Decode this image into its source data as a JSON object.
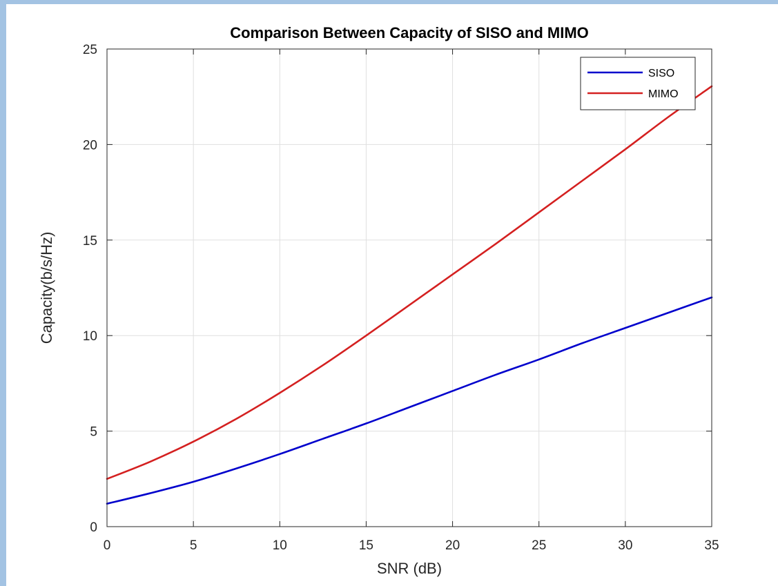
{
  "chart_data": {
    "type": "line",
    "title": "Comparison Between Capacity of SISO and MIMO",
    "xlabel": "SNR (dB)",
    "ylabel": "Capacity(b/s/Hz)",
    "xlim": [
      0,
      35
    ],
    "ylim": [
      0,
      25
    ],
    "xticks": [
      0,
      5,
      10,
      15,
      20,
      25,
      30,
      35
    ],
    "yticks": [
      0,
      5,
      10,
      15,
      20,
      25
    ],
    "grid": true,
    "legend_position": "top-right",
    "x": [
      0,
      2.5,
      5,
      7.5,
      10,
      12.5,
      15,
      17.5,
      20,
      22.5,
      25,
      27.5,
      30,
      32.5,
      35
    ],
    "series": [
      {
        "name": "SISO",
        "color": "#0000cc",
        "values": [
          1.2,
          1.75,
          2.35,
          3.05,
          3.8,
          4.6,
          5.4,
          6.25,
          7.1,
          7.95,
          8.75,
          9.6,
          10.4,
          11.2,
          12.0
        ]
      },
      {
        "name": "MIMO",
        "color": "#d42020",
        "values": [
          2.5,
          3.4,
          4.45,
          5.65,
          7.0,
          8.45,
          10.0,
          11.6,
          13.2,
          14.8,
          16.45,
          18.1,
          19.75,
          21.45,
          23.05
        ]
      }
    ]
  }
}
